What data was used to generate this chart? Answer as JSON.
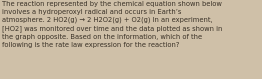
{
  "text": "The reaction represented by the chemical equation shown below\ninvolves a hydroperoxyl radical and occurs in Earth’s\natmosphere. 2 HO2(g) → 2 H2O2(g) + O2(g) In an experiment,\n[HO2] was monitored over time and the data plotted as shown in\nthe graph opposite. Based on the information, which of the\nfollowing is the rate law expression for the reaction?",
  "font_size": 4.9,
  "text_color": "#3a3228",
  "background_color": "#cfc0a8",
  "linespacing": 1.38
}
